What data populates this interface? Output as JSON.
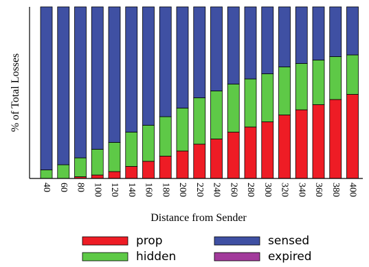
{
  "chart_data": {
    "type": "bar",
    "stacked": true,
    "percent_stacked": true,
    "xlabel": "Distance from Sender",
    "ylabel": "% of Total Losses",
    "ylim": [
      0,
      100
    ],
    "y_ticks_shown": false,
    "grid": false,
    "legend_position": "bottom",
    "categories": [
      "40",
      "60",
      "80",
      "100",
      "120",
      "140",
      "160",
      "180",
      "200",
      "220",
      "240",
      "260",
      "280",
      "300",
      "320",
      "340",
      "360",
      "380",
      "400"
    ],
    "series": [
      {
        "name": "prop",
        "color": "#ee1c25",
        "values": [
          0,
          0,
          1,
          2,
          4,
          7,
          10,
          13,
          16,
          20,
          23,
          27,
          30,
          33,
          37,
          40,
          43,
          46,
          49
        ]
      },
      {
        "name": "hidden",
        "color": "#5ec947",
        "values": [
          5,
          8,
          11,
          15,
          17,
          20,
          21,
          23,
          25,
          27,
          28,
          28,
          28,
          28,
          28,
          27,
          26,
          25,
          23
        ]
      },
      {
        "name": "sensed",
        "color": "#3f50a3",
        "values": [
          95,
          92,
          88,
          83,
          79,
          73,
          69,
          64,
          59,
          53,
          49,
          45,
          42,
          39,
          35,
          33,
          31,
          29,
          28
        ]
      },
      {
        "name": "expired",
        "color": "#a23a9b",
        "values": [
          0,
          0,
          0,
          0,
          0,
          0,
          0,
          0,
          0,
          0,
          0,
          0,
          0,
          0,
          0,
          0,
          0,
          0,
          0
        ]
      }
    ]
  }
}
